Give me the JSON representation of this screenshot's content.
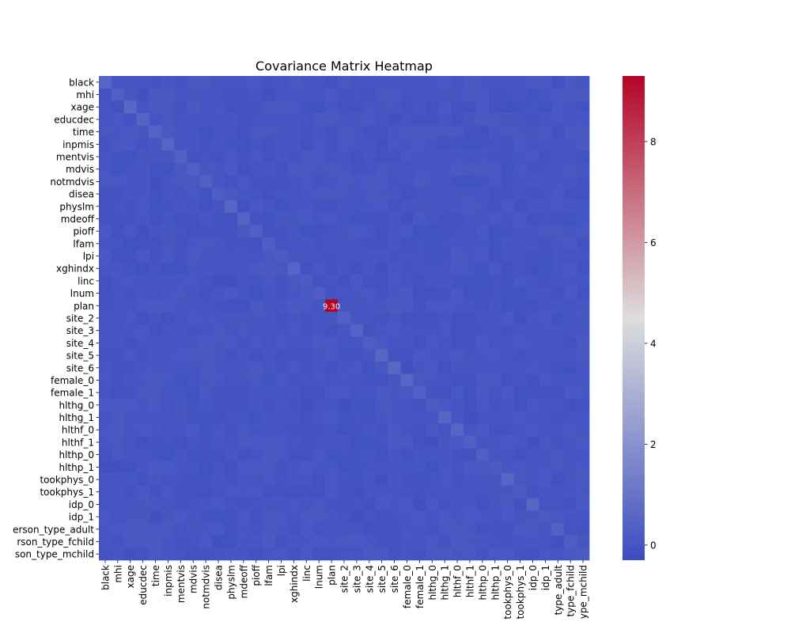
{
  "chart_data": {
    "type": "heatmap",
    "title": "Covariance Matrix Heatmap",
    "xlabel": "",
    "ylabel": "",
    "variables": [
      "black",
      "mhi",
      "xage",
      "educdec",
      "time",
      "inpmis",
      "mentvis",
      "mdvis",
      "notmdvis",
      "disea",
      "physlm",
      "mdeoff",
      "pioff",
      "lfam",
      "lpi",
      "xghindx",
      "linc",
      "lnum",
      "plan",
      "site_2",
      "site_3",
      "site_4",
      "site_5",
      "site_6",
      "female_0",
      "female_1",
      "hlthg_0",
      "hlthg_1",
      "hlthf_0",
      "hlthf_1",
      "hlthp_0",
      "hlthp_1",
      "tookphys_0",
      "tookphys_1",
      "idp_0",
      "idp_1",
      "person_type_adult",
      "person_type_fchild",
      "person_type_mchild"
    ],
    "x_tick_labels": [
      "black",
      "mhi",
      "xage",
      "educdec",
      "time",
      "inpmis",
      "mentvis",
      "mdvis",
      "notmdvis",
      "disea",
      "physlm",
      "mdeoff",
      "pioff",
      "lfam",
      "lpi",
      "xghindx",
      "linc",
      "lnum",
      "plan",
      "site_2",
      "site_3",
      "site_4",
      "site_5",
      "site_6",
      "female_0",
      "female_1",
      "hlthg_0",
      "hlthg_1",
      "hlthf_0",
      "hlthf_1",
      "hlthp_0",
      "hlthp_1",
      "tookphys_0",
      "tookphys_1",
      "idp_0",
      "idp_1",
      "type_adult",
      "type_fchild",
      "ype_mchild"
    ],
    "y_tick_labels": [
      "black",
      "mhi",
      "xage",
      "educdec",
      "time",
      "inpmis",
      "mentvis",
      "mdvis",
      "notmdvis",
      "disea",
      "physlm",
      "mdeoff",
      "pioff",
      "lfam",
      "lpi",
      "xghindx",
      "linc",
      "lnum",
      "plan",
      "site_2",
      "site_3",
      "site_4",
      "site_5",
      "site_6",
      "female_0",
      "female_1",
      "hlthg_0",
      "hlthg_1",
      "hlthf_0",
      "hlthf_1",
      "hlthp_0",
      "hlthp_1",
      "tookphys_0",
      "tookphys_1",
      "idp_0",
      "idp_1",
      "erson_type_adult",
      "rson_type_fchild",
      "son_type_mchild"
    ],
    "highlight": {
      "row": 18,
      "col": 18,
      "value": 9.3,
      "label": "9.30"
    },
    "annotations": "cell values printed in each cell (overlapping, mostly illegible)",
    "colormap": "coolwarm",
    "vmin": -0.3,
    "vmax": 9.3,
    "colorbar_ticks": [
      0,
      2,
      4,
      6,
      8
    ],
    "colors": {
      "low": "#3b4cc0",
      "mid": "#dddddd",
      "high": "#b40426"
    }
  }
}
